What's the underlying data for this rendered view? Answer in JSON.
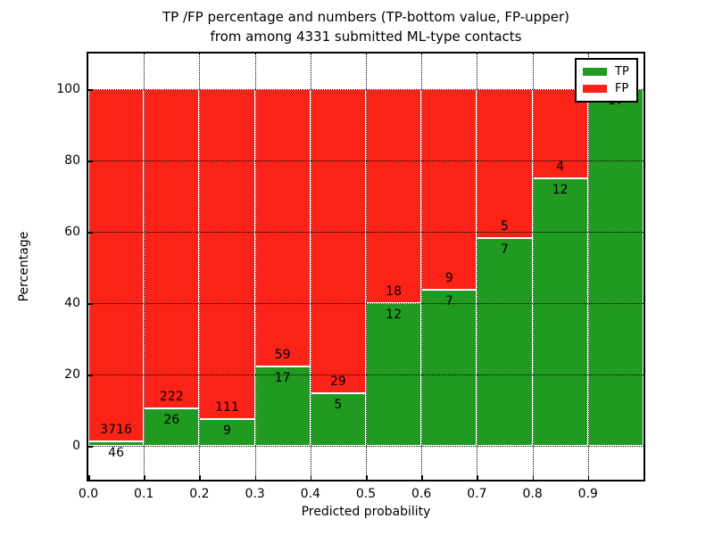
{
  "title": {
    "line1": "TP /FP percentage and numbers (TP-bottom value, FP-upper)",
    "line2": "from among 4331 submitted ML-type contacts"
  },
  "axes": {
    "xlabel": "Predicted probability",
    "ylabel": "Percentage",
    "x_tick_labels": [
      "0.0",
      "0.1",
      "0.2",
      "0.3",
      "0.4",
      "0.5",
      "0.6",
      "0.7",
      "0.8",
      "0.9"
    ],
    "y_tick_labels": [
      "0",
      "20",
      "40",
      "60",
      "80",
      "100"
    ],
    "y_tick_values": [
      0,
      20,
      40,
      60,
      80,
      100
    ]
  },
  "legend": {
    "position": "upper right",
    "items": [
      {
        "label": "TP",
        "color": "#219a21"
      },
      {
        "label": "FP",
        "color": "#fb2318"
      }
    ]
  },
  "colors": {
    "tp_green": "#219a21",
    "fp_red": "#fb2318",
    "grid": "#000000",
    "background": "#ffffff",
    "bar_edge": "#ffffff"
  },
  "chart_data": {
    "type": "bar",
    "stacked": true,
    "normalized": "each bin scaled to 100%",
    "title": "TP /FP percentage and numbers (TP-bottom value, FP-upper) from among 4331 submitted ML-type contacts",
    "xlabel": "Predicted probability",
    "ylabel": "Percentage",
    "total_contacts": 4331,
    "bin_edges": [
      0.0,
      0.1,
      0.2,
      0.3,
      0.4,
      0.5,
      0.6,
      0.7,
      0.8,
      0.9,
      1.0
    ],
    "categories": [
      "0.0-0.1",
      "0.1-0.2",
      "0.2-0.3",
      "0.3-0.4",
      "0.4-0.5",
      "0.5-0.6",
      "0.6-0.7",
      "0.7-0.8",
      "0.8-0.9",
      "0.9-1.0"
    ],
    "series": [
      {
        "name": "TP",
        "color": "#219a21",
        "counts": [
          46,
          26,
          9,
          17,
          5,
          12,
          7,
          7,
          12,
          17
        ]
      },
      {
        "name": "FP",
        "color": "#fb2318",
        "counts": [
          3716,
          222,
          111,
          59,
          29,
          18,
          9,
          5,
          4,
          0
        ]
      }
    ],
    "tp_percent": [
      1.22,
      10.48,
      7.5,
      22.37,
      14.71,
      40.0,
      43.75,
      58.33,
      75.0,
      100.0
    ],
    "ylim": [
      -9.5,
      110
    ],
    "xlim": [
      0.0,
      1.0
    ],
    "grid": true,
    "grid_style": "dotted",
    "bar_label_note": "TP count below segment boundary, FP count above it",
    "legend_position": "upper right"
  }
}
